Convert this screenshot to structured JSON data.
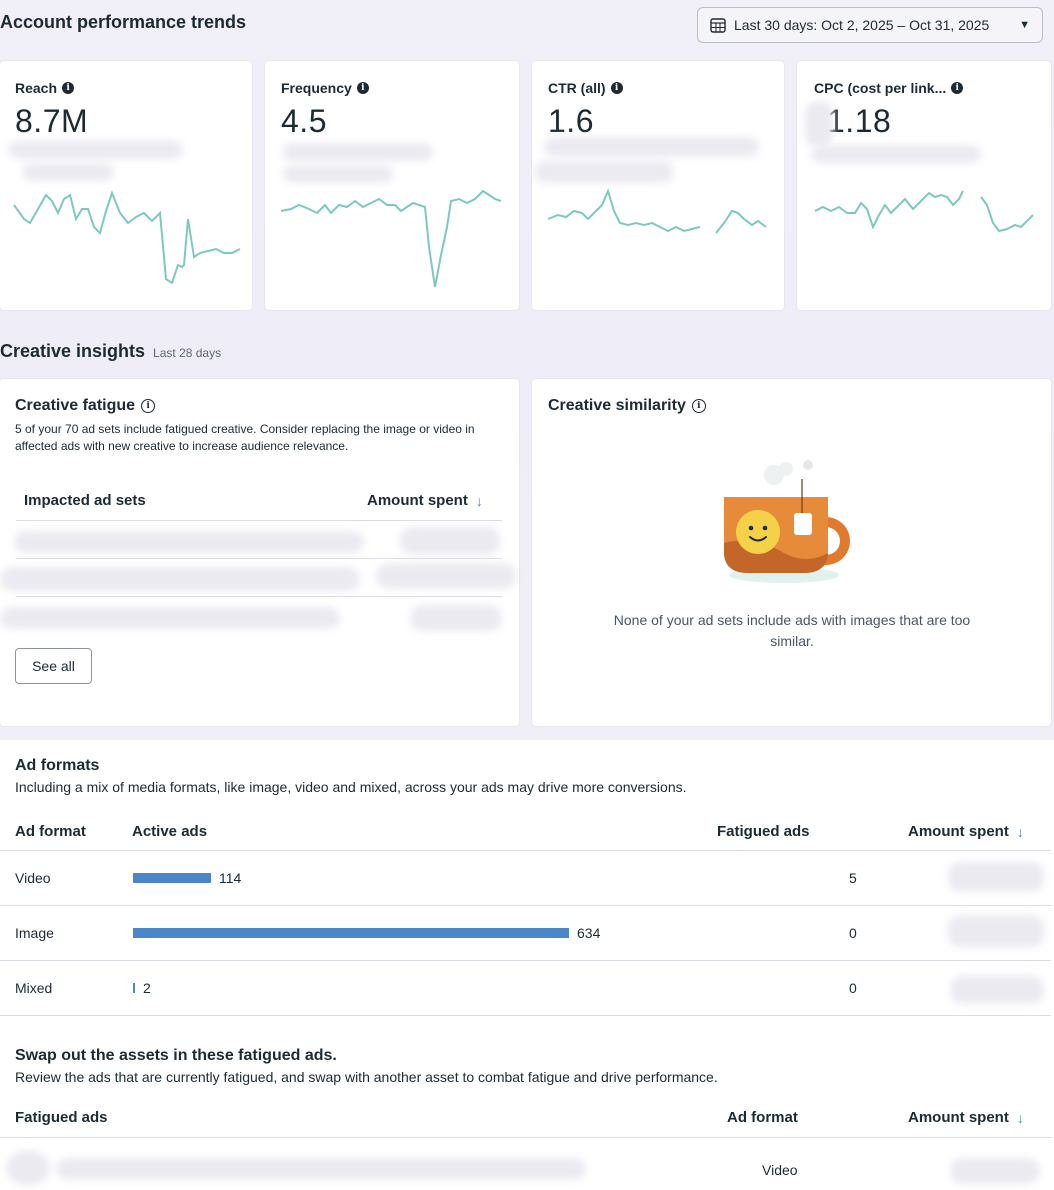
{
  "header": {
    "title": "Account performance trends",
    "date_range": "Last 30 days: Oct 2, 2025 – Oct 31, 2025"
  },
  "metrics": [
    {
      "label": "Reach",
      "value": "8.7M"
    },
    {
      "label": "Frequency",
      "value": "4.5"
    },
    {
      "label": "CTR (all)",
      "value": "1.6"
    },
    {
      "label": "CPC (cost per link...",
      "value": "1.18"
    }
  ],
  "creative_insights": {
    "title": "Creative insights",
    "period": "Last 28 days",
    "fatigue": {
      "title": "Creative fatigue",
      "description": "5 of your 70 ad sets include fatigued creative. Consider replacing the image or video in affected ads with new creative to increase audience relevance.",
      "col_impacted": "Impacted ad sets",
      "col_amount": "Amount spent",
      "see_all": "See all"
    },
    "similarity": {
      "title": "Creative similarity",
      "message": "None of your ad sets include ads with images that are too similar."
    }
  },
  "ad_formats": {
    "title": "Ad formats",
    "description": "Including a mix of media formats, like image, video and mixed, across your ads may drive more conversions.",
    "columns": {
      "format": "Ad format",
      "active": "Active ads",
      "fatigued": "Fatigued ads",
      "amount": "Amount spent"
    },
    "rows": [
      {
        "format": "Video",
        "active": "114",
        "active_num": 114,
        "fatigued": "5"
      },
      {
        "format": "Image",
        "active": "634",
        "active_num": 634,
        "fatigued": "0"
      },
      {
        "format": "Mixed",
        "active": "2",
        "active_num": 2,
        "fatigued": "0"
      }
    ]
  },
  "swap": {
    "title": "Swap out the assets in these fatigued ads.",
    "description": "Review the ads that are currently fatigued, and swap with another asset to combat fatigue and drive performance.",
    "columns": {
      "ads": "Fatigued ads",
      "format": "Ad format",
      "amount": "Amount spent"
    },
    "rows": [
      {
        "format": "Video"
      }
    ]
  },
  "colors": {
    "spark": "#7ec8bf",
    "bar": "#4a86c8",
    "link": "#4a86c8"
  },
  "icons": [
    "calendar-icon",
    "caret-down-icon",
    "info-icon",
    "sort-down-arrow-icon",
    "teacup-illustration"
  ]
}
